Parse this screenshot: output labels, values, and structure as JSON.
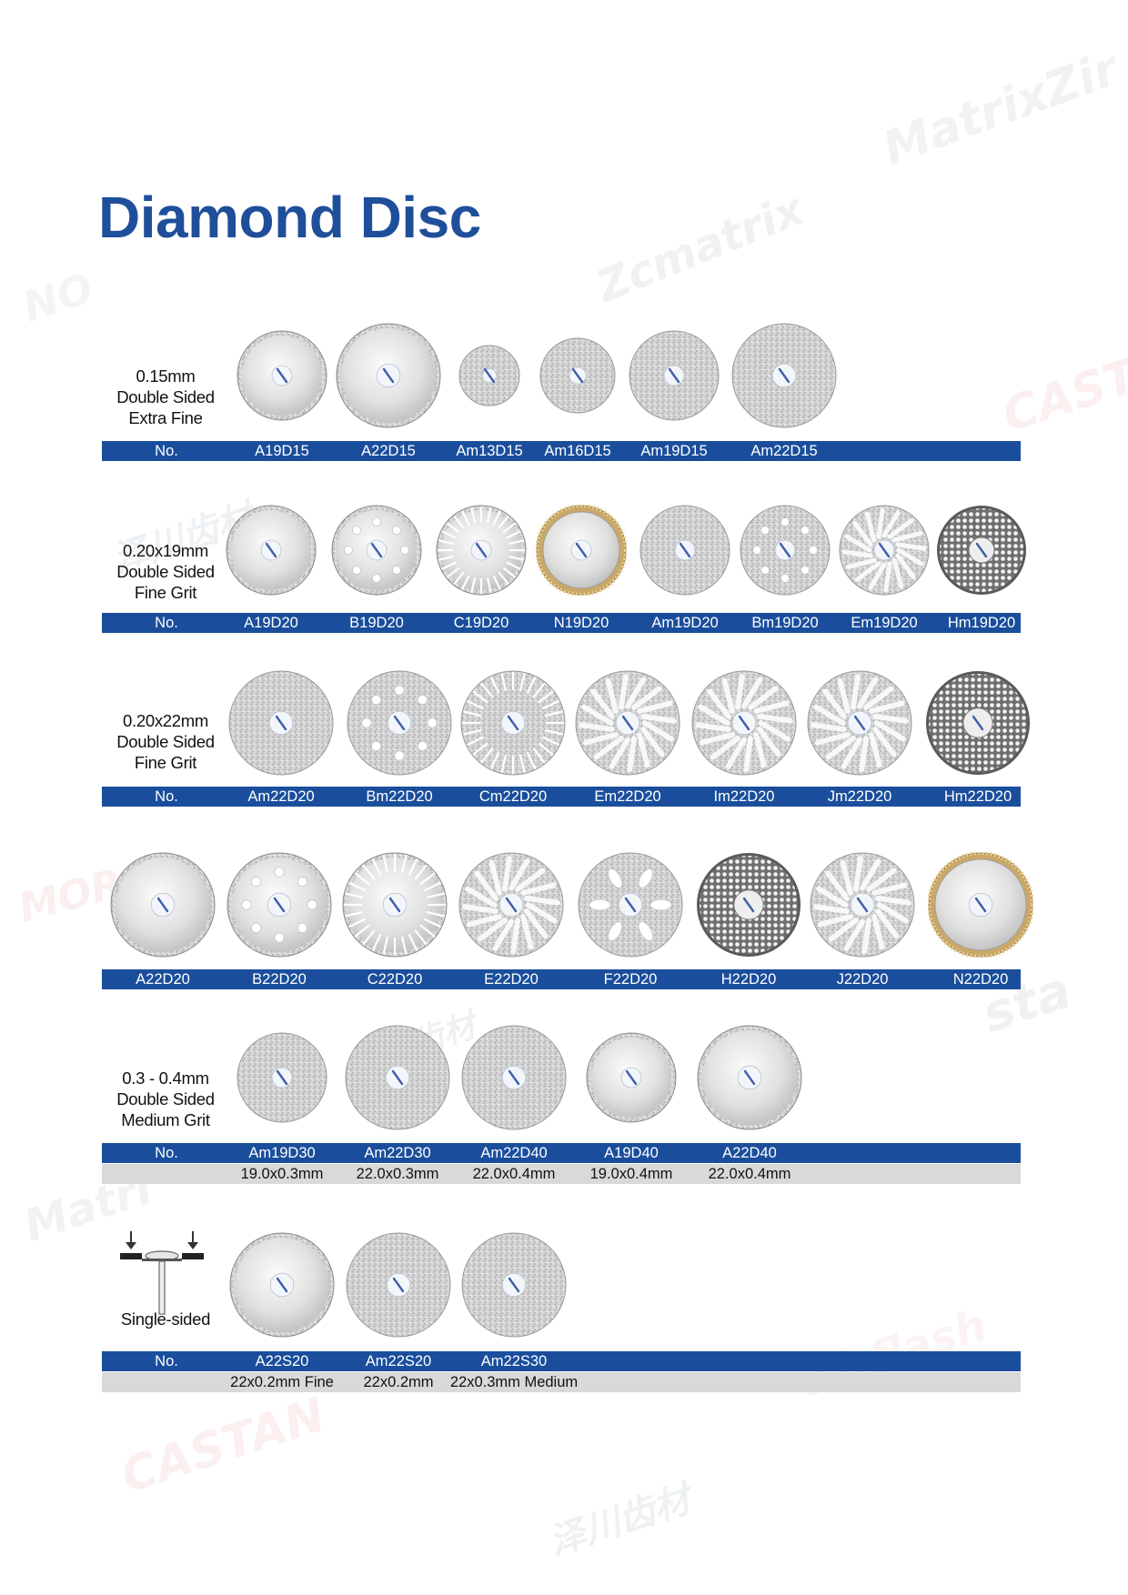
{
  "title": "Diamond Disc",
  "watermarks": [
    "MatrixZir",
    "Zcmatrix",
    "CASTA",
    "泽川齿材",
    "MOR",
    "CASTAN",
    "Matri",
    "NO",
    "sta",
    "Zirflash"
  ],
  "sections": [
    {
      "label_lines": [
        "0.15mm",
        "Double Sided",
        "Extra Fine"
      ],
      "header": "No.",
      "products": [
        {
          "code": "A19D15",
          "style": "rim"
        },
        {
          "code": "A22D15",
          "style": "rim"
        },
        {
          "code": "Am13D15",
          "style": "full"
        },
        {
          "code": "Am16D15",
          "style": "full"
        },
        {
          "code": "Am19D15",
          "style": "full"
        },
        {
          "code": "Am22D15",
          "style": "full"
        }
      ]
    },
    {
      "label_lines": [
        "0.20x19mm",
        "Double Sided",
        "Fine Grit"
      ],
      "header": "No.",
      "products": [
        {
          "code": "A19D20",
          "style": "rim"
        },
        {
          "code": "B19D20",
          "style": "holes"
        },
        {
          "code": "C19D20",
          "style": "serrated"
        },
        {
          "code": "N19D20",
          "style": "gold"
        },
        {
          "code": "Am19D20",
          "style": "full"
        },
        {
          "code": "Bm19D20",
          "style": "fullholes"
        },
        {
          "code": "Em19D20",
          "style": "slots"
        },
        {
          "code": "Hm19D20",
          "style": "mesh"
        }
      ]
    },
    {
      "label_lines": [
        "0.20x22mm",
        "Double Sided",
        "Fine Grit"
      ],
      "header": "No.",
      "products": [
        {
          "code": "Am22D20",
          "style": "full"
        },
        {
          "code": "Bm22D20",
          "style": "fullholes"
        },
        {
          "code": "Cm22D20",
          "style": "serratedfull"
        },
        {
          "code": "Em22D20",
          "style": "slots"
        },
        {
          "code": "Im22D20",
          "style": "slots"
        },
        {
          "code": "Jm22D20",
          "style": "slots"
        },
        {
          "code": "Hm22D20",
          "style": "mesh"
        }
      ]
    },
    {
      "label_lines": [],
      "header": "",
      "products": [
        {
          "code": "A22D20",
          "style": "rim"
        },
        {
          "code": "B22D20",
          "style": "holes"
        },
        {
          "code": "C22D20",
          "style": "serrated"
        },
        {
          "code": "E22D20",
          "style": "slots"
        },
        {
          "code": "F22D20",
          "style": "ovals"
        },
        {
          "code": "H22D20",
          "style": "mesh"
        },
        {
          "code": "J22D20",
          "style": "slots"
        },
        {
          "code": "N22D20",
          "style": "gold"
        }
      ]
    },
    {
      "label_lines": [
        "0.3 - 0.4mm",
        "Double Sided",
        "Medium Grit"
      ],
      "header": "No.",
      "products": [
        {
          "code": "Am19D30",
          "spec": "19.0x0.3mm",
          "style": "full"
        },
        {
          "code": "Am22D30",
          "spec": "22.0x0.3mm",
          "style": "full"
        },
        {
          "code": "Am22D40",
          "spec": "22.0x0.4mm",
          "style": "full"
        },
        {
          "code": "A19D40",
          "spec": "19.0x0.4mm",
          "style": "rim"
        },
        {
          "code": "A22D40",
          "spec": "22.0x0.4mm",
          "style": "rim"
        }
      ]
    },
    {
      "label_lines": [
        "Single-sided"
      ],
      "header": "No.",
      "products": [
        {
          "code": "A22S20",
          "spec": "22x0.2mm Fine",
          "style": "rim"
        },
        {
          "code": "Am22S20",
          "spec": "22x0.2mm",
          "style": "full"
        },
        {
          "code": "Am22S30",
          "spec": "22x0.3mm Medium",
          "style": "full"
        }
      ]
    }
  ]
}
